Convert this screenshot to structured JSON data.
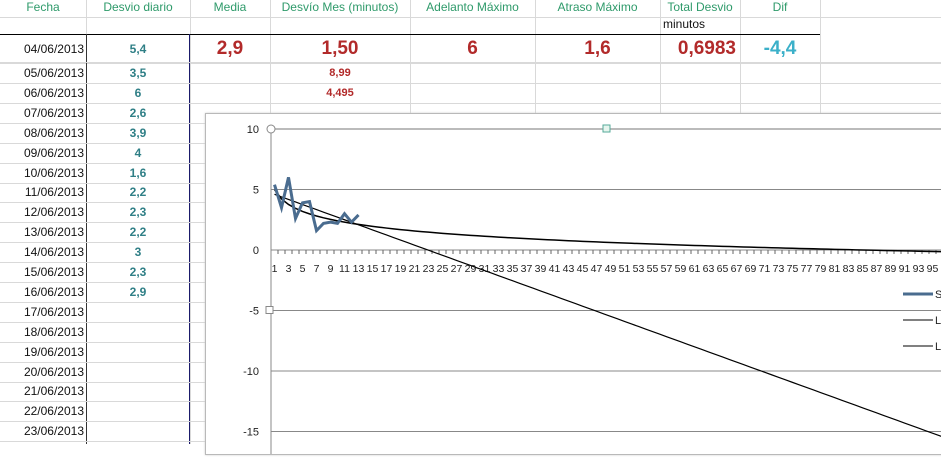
{
  "headers": {
    "fecha": "Fecha",
    "desvio_diario": "Desvio diario",
    "media": "Media",
    "desvio_mes": "Desvío Mes (minutos)",
    "adelanto": "Adelanto  Máximo",
    "atraso": "Atraso Máximo",
    "total": "Total Desvio",
    "total_sub": "minutos",
    "dif": "Dif"
  },
  "summary": {
    "media": "2,9",
    "desvio_mes": "1,50",
    "adelanto": "6",
    "atraso": "1,6",
    "total": "0,6983",
    "dif": "-4,4",
    "desvio_mes_2": "8,99",
    "desvio_mes_3": "4,495"
  },
  "rows": [
    {
      "fecha": "04/06/2013",
      "desvio": "5,4"
    },
    {
      "fecha": "05/06/2013",
      "desvio": "3,5"
    },
    {
      "fecha": "06/06/2013",
      "desvio": "6"
    },
    {
      "fecha": "07/06/2013",
      "desvio": "2,6"
    },
    {
      "fecha": "08/06/2013",
      "desvio": "3,9"
    },
    {
      "fecha": "09/06/2013",
      "desvio": "4"
    },
    {
      "fecha": "10/06/2013",
      "desvio": "1,6"
    },
    {
      "fecha": "11/06/2013",
      "desvio": "2,2"
    },
    {
      "fecha": "12/06/2013",
      "desvio": "2,3"
    },
    {
      "fecha": "13/06/2013",
      "desvio": "2,2"
    },
    {
      "fecha": "14/06/2013",
      "desvio": "3"
    },
    {
      "fecha": "15/06/2013",
      "desvio": "2,3"
    },
    {
      "fecha": "16/06/2013",
      "desvio": "2,9"
    },
    {
      "fecha": "17/06/2013",
      "desvio": ""
    },
    {
      "fecha": "18/06/2013",
      "desvio": ""
    },
    {
      "fecha": "19/06/2013",
      "desvio": ""
    },
    {
      "fecha": "20/06/2013",
      "desvio": ""
    },
    {
      "fecha": "21/06/2013",
      "desvio": ""
    },
    {
      "fecha": "22/06/2013",
      "desvio": ""
    },
    {
      "fecha": "23/06/2013",
      "desvio": ""
    }
  ],
  "colors": {
    "header": "#2e9a6a",
    "value_red": "#b22a2a",
    "value_teal": "#2f7f86",
    "dif": "#3bb0c9",
    "series": "#4a6c8f"
  },
  "chart_data": {
    "type": "line",
    "ylim": [
      -15,
      10
    ],
    "yticks": [
      10,
      5,
      0,
      -5,
      -10,
      -15
    ],
    "x_categories_count": 100,
    "grid": true,
    "series": [
      {
        "values": [
          5.4,
          3.5,
          6,
          2.6,
          3.9,
          4,
          1.6,
          2.2,
          2.3,
          2.2,
          3,
          2.3,
          2.9
        ]
      }
    ],
    "trendlines": [
      {
        "type": "linear"
      },
      {
        "type": "logarithmic"
      }
    ],
    "legend": {
      "position": "right",
      "entries": [
        "Se",
        "Li",
        "Lo"
      ]
    }
  }
}
